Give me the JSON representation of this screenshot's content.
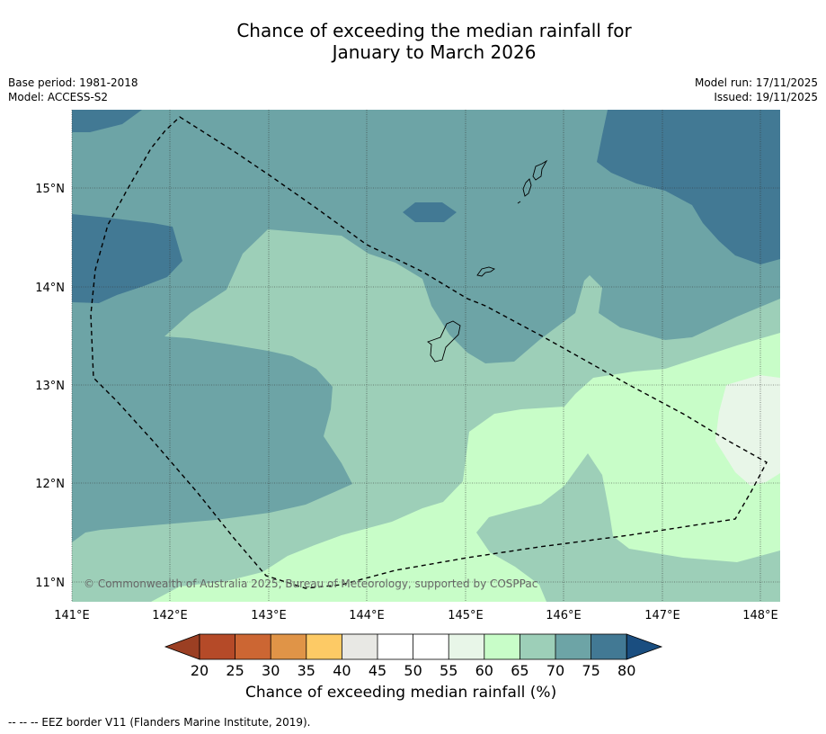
{
  "title": {
    "line1": "Chance of exceeding the median rainfall for",
    "line2": "January to March 2026"
  },
  "meta": {
    "base_period": "Base period: 1981-2018",
    "model": "Model: ACCESS-S2",
    "model_run": "Model run: 17/11/2025",
    "issued": "Issued: 19/11/2025"
  },
  "axes": {
    "lon_ticks": [
      "141°E",
      "142°E",
      "143°E",
      "144°E",
      "145°E",
      "146°E",
      "147°E",
      "148°E"
    ],
    "lat_ticks": [
      "15°N",
      "14°N",
      "13°N",
      "12°N",
      "11°N"
    ]
  },
  "credit": "© Commonwealth of Australia 2025, Bureau of Meteorology, supported by COSPPac",
  "legend": {
    "title": "Chance of exceeding median rainfall (%)",
    "labels": [
      "20",
      "25",
      "30",
      "35",
      "40",
      "45",
      "50",
      "55",
      "60",
      "65",
      "70",
      "75",
      "80"
    ],
    "colors": [
      "#9b3f23",
      "#b54a28",
      "#cc6633",
      "#e09447",
      "#fdca65",
      "#e8e8e4",
      "#ffffff",
      "#ffffff",
      "#e8f6e8",
      "#c8fdc8",
      "#9dcfb8",
      "#6da4a6",
      "#427994",
      "#1a4e80"
    ]
  },
  "field_colors": {
    "c60": "#e8f6e8",
    "c65": "#c8fdc8",
    "c70": "#9dcfb8",
    "c75": "#6da4a6",
    "c80": "#427994"
  },
  "footnote": "-- -- -- EEZ border V11 (Flanders Marine Institute, 2019)."
}
